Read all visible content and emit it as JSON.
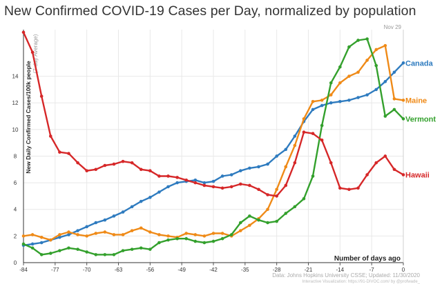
{
  "title": "New Confirmed COVID-19 Cases per Day, normalized by population",
  "chart_data": {
    "type": "line",
    "title": "New Confirmed COVID-19 Cases per Day, normalized by population",
    "ylabel": "New Daily Confirmed Cases/100k people",
    "ylabel_sub": "(7-day Average)",
    "xlabel": "Number of days ago",
    "date_marker": "Nov 29",
    "xlim": [
      -84,
      0
    ],
    "ylim": [
      0,
      17.5
    ],
    "x_ticks": [
      -84,
      -77,
      -70,
      -63,
      -56,
      -49,
      -42,
      -35,
      -28,
      -21,
      -14,
      -7,
      0
    ],
    "y_ticks": [
      0,
      2,
      4,
      6,
      8,
      10,
      12,
      14
    ],
    "grid": true,
    "legend": "inline labels at right end of lines",
    "source": "Data: Johns Hopkins University CSSE; Updated: 11/30/2020",
    "credit": "Interactive Visualization: https://91-DIVOC.com/ by @profwade_",
    "series": [
      {
        "name": "Canada",
        "color": "#2e7bbf",
        "x": [
          -84,
          -82,
          -80,
          -78,
          -76,
          -74,
          -72,
          -70,
          -68,
          -66,
          -64,
          -62,
          -60,
          -58,
          -56,
          -54,
          -52,
          -50,
          -48,
          -46,
          -44,
          -42,
          -40,
          -38,
          -36,
          -34,
          -32,
          -30,
          -28,
          -26,
          -24,
          -22,
          -20,
          -18,
          -16,
          -14,
          -12,
          -10,
          -8,
          -6,
          -4,
          -2,
          0
        ],
        "y": [
          1.3,
          1.4,
          1.5,
          1.7,
          1.9,
          2.1,
          2.4,
          2.7,
          3.0,
          3.2,
          3.5,
          3.8,
          4.2,
          4.6,
          4.9,
          5.3,
          5.7,
          6.0,
          6.1,
          6.2,
          6.0,
          6.1,
          6.5,
          6.6,
          6.9,
          7.1,
          7.2,
          7.4,
          8.0,
          8.5,
          9.5,
          10.6,
          11.5,
          11.8,
          12.0,
          12.1,
          12.2,
          12.4,
          12.6,
          13.0,
          13.6,
          14.3,
          15.0
        ]
      },
      {
        "name": "Maine",
        "color": "#ef8a17",
        "x": [
          -84,
          -82,
          -80,
          -78,
          -76,
          -74,
          -72,
          -70,
          -68,
          -66,
          -64,
          -62,
          -60,
          -58,
          -56,
          -54,
          -52,
          -50,
          -48,
          -46,
          -44,
          -42,
          -40,
          -38,
          -36,
          -34,
          -32,
          -30,
          -28,
          -26,
          -24,
          -22,
          -20,
          -18,
          -16,
          -14,
          -12,
          -10,
          -8,
          -6,
          -4,
          -2,
          0
        ],
        "y": [
          2.0,
          2.1,
          1.9,
          1.7,
          2.1,
          2.3,
          2.1,
          2.0,
          2.2,
          2.3,
          2.1,
          2.1,
          2.4,
          2.6,
          2.3,
          2.1,
          2.0,
          1.9,
          2.2,
          2.1,
          2.0,
          2.2,
          2.2,
          2.0,
          2.4,
          2.8,
          3.3,
          4.0,
          5.5,
          7.2,
          8.8,
          10.8,
          12.1,
          12.2,
          12.6,
          13.5,
          14.0,
          14.3,
          15.2,
          16.0,
          16.3,
          12.3,
          12.2
        ]
      },
      {
        "name": "Vermont",
        "color": "#33a02c",
        "x": [
          -84,
          -82,
          -80,
          -78,
          -76,
          -74,
          -72,
          -70,
          -68,
          -66,
          -64,
          -62,
          -60,
          -58,
          -56,
          -54,
          -52,
          -50,
          -48,
          -46,
          -44,
          -42,
          -40,
          -38,
          -36,
          -34,
          -32,
          -30,
          -28,
          -26,
          -24,
          -22,
          -20,
          -18,
          -16,
          -14,
          -12,
          -10,
          -8,
          -6,
          -4,
          -2,
          0
        ],
        "y": [
          1.4,
          1.1,
          0.6,
          0.7,
          0.9,
          1.1,
          1.0,
          0.8,
          0.6,
          0.6,
          0.6,
          0.9,
          1.0,
          1.1,
          1.0,
          1.5,
          1.7,
          1.8,
          1.8,
          1.6,
          1.5,
          1.6,
          1.8,
          2.1,
          3.0,
          3.5,
          3.2,
          3.0,
          3.1,
          3.7,
          4.2,
          4.8,
          6.5,
          10.3,
          13.5,
          14.7,
          16.2,
          16.7,
          16.8,
          14.8,
          11.0,
          11.5,
          10.8
        ]
      },
      {
        "name": "Hawaii",
        "color": "#d62728",
        "x": [
          -84,
          -82,
          -80,
          -78,
          -76,
          -74,
          -72,
          -70,
          -68,
          -66,
          -64,
          -62,
          -60,
          -58,
          -56,
          -54,
          -52,
          -50,
          -48,
          -46,
          -44,
          -42,
          -40,
          -38,
          -36,
          -34,
          -32,
          -30,
          -28,
          -26,
          -24,
          -22,
          -20,
          -18,
          -16,
          -14,
          -12,
          -10,
          -8,
          -6,
          -4,
          -2,
          0
        ],
        "y": [
          17.3,
          15.8,
          12.5,
          9.5,
          8.3,
          8.2,
          7.5,
          6.9,
          7.0,
          7.3,
          7.4,
          7.6,
          7.5,
          7.0,
          6.9,
          6.5,
          6.5,
          6.4,
          6.2,
          6.0,
          5.8,
          5.7,
          5.6,
          5.7,
          5.9,
          5.8,
          5.5,
          5.1,
          5.0,
          5.8,
          7.5,
          9.8,
          9.7,
          9.2,
          7.5,
          5.6,
          5.5,
          5.6,
          6.6,
          7.5,
          8.0,
          7.0,
          6.6
        ]
      }
    ]
  }
}
